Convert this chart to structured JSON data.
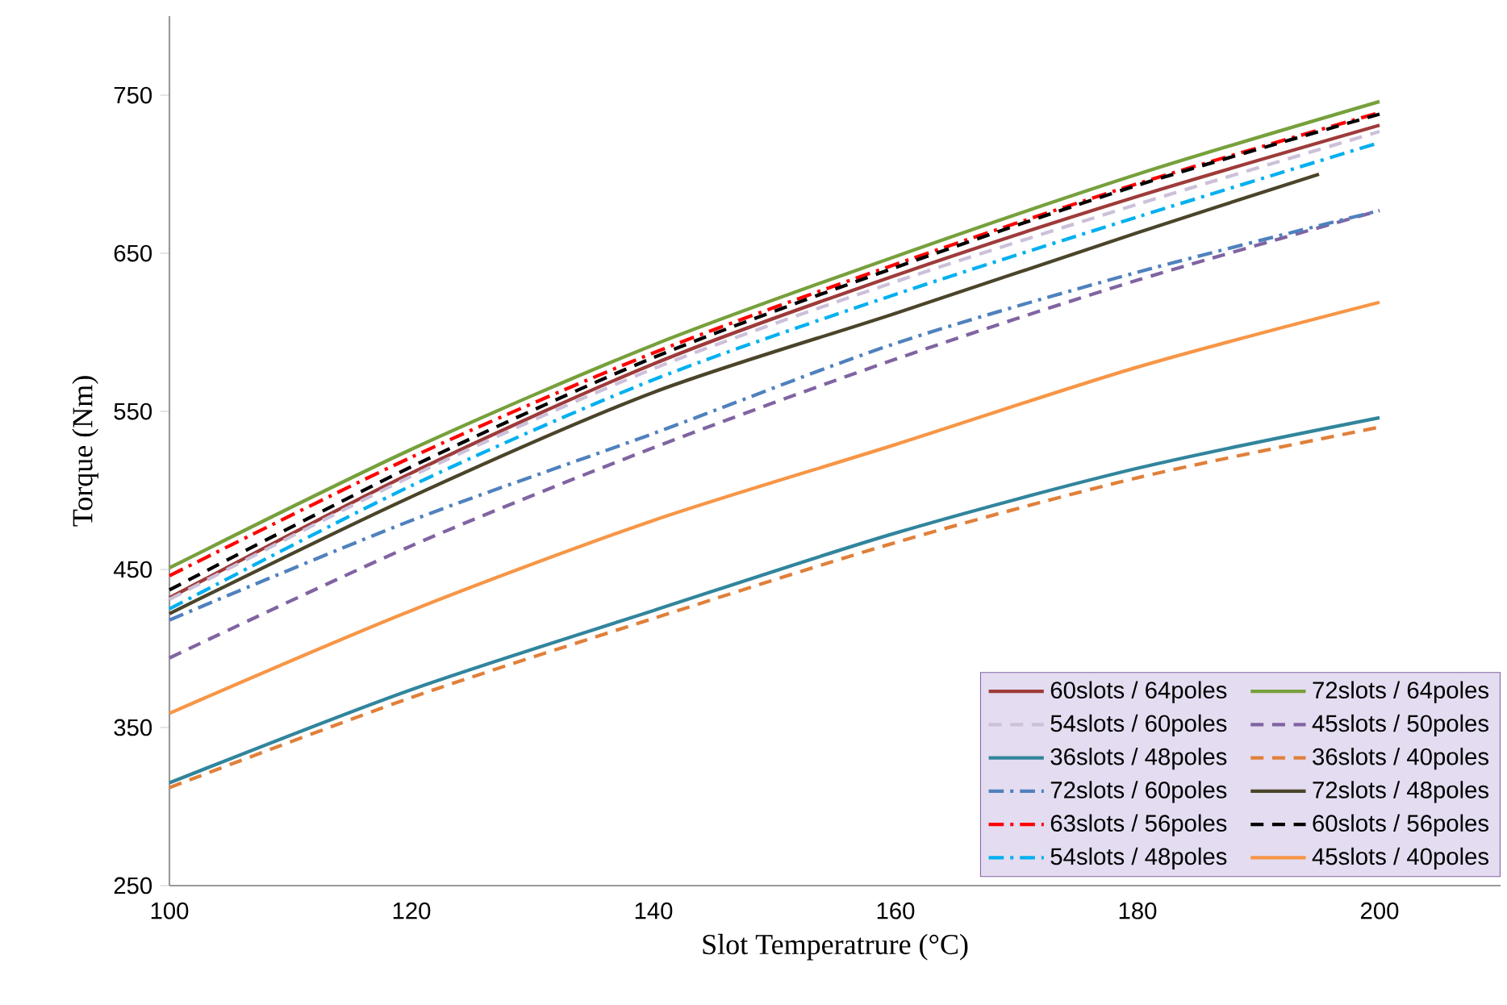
{
  "chart_data": {
    "type": "line",
    "xlabel": "Slot Temperatrure (°C)",
    "ylabel": "Torque (Nm)",
    "x": [
      100,
      120,
      140,
      160,
      180,
      200
    ],
    "xlim": [
      100,
      210
    ],
    "xticks": [
      100,
      120,
      140,
      160,
      180,
      200
    ],
    "ylim": [
      250,
      800
    ],
    "yticks": [
      250,
      350,
      450,
      550,
      650,
      750
    ],
    "grid": false,
    "legend": "bottom right",
    "marker": "none",
    "series": [
      {
        "name": "60slots / 64poles",
        "color": "#9e3b3a",
        "line_style": "solid",
        "values": [
          432,
          511,
          580,
          636,
          686,
          731
        ]
      },
      {
        "name": "72slots / 64poles",
        "color": "#77a03c",
        "line_style": "solid",
        "values": [
          451,
          526,
          592,
          648,
          700,
          746
        ]
      },
      {
        "name": "54slots / 60poles",
        "color": "#ccc0da",
        "line_style": "dashed",
        "values": [
          431,
          509,
          577,
          632,
          681,
          727
        ]
      },
      {
        "name": "45slots / 50poles",
        "color": "#8064a2",
        "line_style": "dashed",
        "values": [
          394,
          465,
          527,
          583,
          633,
          677
        ]
      },
      {
        "name": "36slots / 48poles",
        "color": "#31859c",
        "line_style": "solid",
        "values": [
          315,
          374,
          424,
          473,
          514,
          546
        ]
      },
      {
        "name": "36slots / 40poles",
        "color": "#e0803a",
        "line_style": "dashed",
        "values": [
          312,
          369,
          419,
          467,
          508,
          540
        ]
      },
      {
        "name": "72slots / 60poles",
        "color": "#4f81bd",
        "line_style": "dashdot",
        "values": [
          418,
          481,
          536,
          593,
          638,
          677
        ]
      },
      {
        "name": "72slots / 48poles",
        "color": "#4a452a",
        "line_style": "solid",
        "x": [
          100,
          120,
          140,
          160,
          180,
          195
        ],
        "values": [
          422,
          496,
          562,
          612,
          663,
          700
        ]
      },
      {
        "name": "63slots / 56poles",
        "color": "#ff0000",
        "line_style": "dashdot",
        "values": [
          446,
          521,
          587,
          643,
          694,
          739
        ]
      },
      {
        "name": "60slots / 56poles",
        "color": "#000000",
        "line_style": "dashed",
        "values": [
          437,
          515,
          584,
          641,
          693,
          738
        ]
      },
      {
        "name": "54slots / 48poles",
        "color": "#00b0f0",
        "line_style": "dashdot",
        "values": [
          425,
          503,
          570,
          624,
          673,
          720
        ]
      },
      {
        "name": "45slots / 40poles",
        "color": "#f79646",
        "line_style": "solid",
        "values": [
          359,
          424,
          481,
          529,
          578,
          619
        ]
      }
    ]
  }
}
